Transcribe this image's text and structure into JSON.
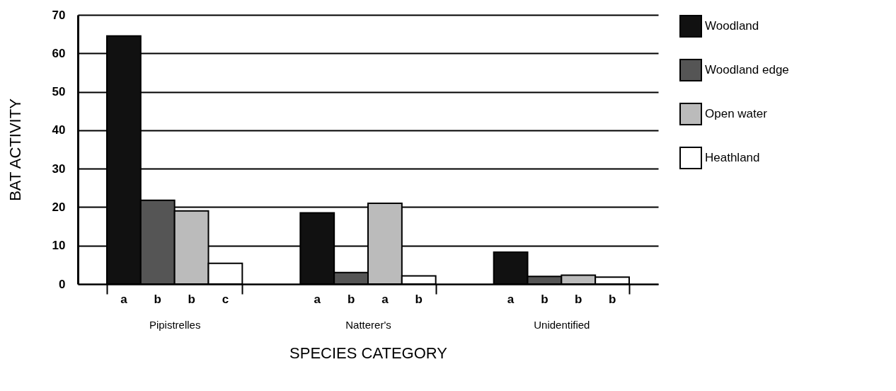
{
  "chart_data": {
    "type": "bar",
    "xlabel": "SPECIES CATEGORY",
    "ylabel": "BAT ACTIVITY",
    "categories": [
      "Pipistrelles",
      "Natterer's",
      "Unidentified"
    ],
    "series": [
      {
        "name": "Woodland",
        "color": "#111111",
        "values": [
          64.5,
          18.5,
          8.3
        ]
      },
      {
        "name": "Woodland edge",
        "color": "#555555",
        "values": [
          21.8,
          3,
          2
        ]
      },
      {
        "name": "Open water",
        "color": "#bbbbbb",
        "values": [
          19,
          21,
          2.3
        ]
      },
      {
        "name": "Heathland",
        "color": "#ffffff",
        "values": [
          5.4,
          2.1,
          1.8
        ]
      }
    ],
    "ylim": [
      0,
      70
    ],
    "yticks": [
      0,
      10,
      20,
      30,
      40,
      50,
      60,
      70
    ],
    "grid": "y",
    "legend": "top right",
    "annotations": [
      "a",
      "b",
      "b",
      "c",
      "a",
      "b",
      "a",
      "b",
      "a",
      "b",
      "b",
      "b"
    ]
  }
}
